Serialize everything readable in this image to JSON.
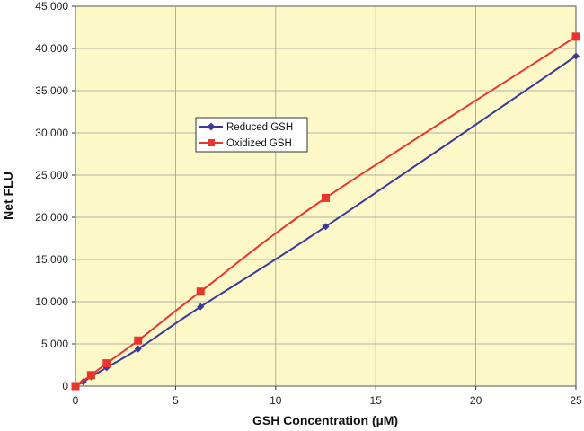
{
  "chart_data": {
    "type": "line",
    "title": "",
    "xlabel": "GSH Concentration (µM)",
    "ylabel": "Net FLU",
    "xlim": [
      0,
      25
    ],
    "ylim": [
      0,
      45000
    ],
    "x_ticks": [
      0,
      5,
      10,
      15,
      20,
      25
    ],
    "x_tick_labels": [
      "0",
      "5",
      "10",
      "15",
      "20",
      "25"
    ],
    "y_ticks": [
      0,
      5000,
      10000,
      15000,
      20000,
      25000,
      30000,
      35000,
      40000,
      45000
    ],
    "y_tick_labels": [
      "0",
      "5,000",
      "10,000",
      "15,000",
      "20,000",
      "25,000",
      "30,000",
      "35,000",
      "40,000",
      "45,000"
    ],
    "grid": true,
    "legend_position": "center-left",
    "plot_background": "#FDF8C8",
    "grid_color": "#9A9A9A",
    "series": [
      {
        "name": "Reduced GSH",
        "marker": "diamond",
        "color": "#3B3A9A",
        "x": [
          0,
          0.39,
          0.78,
          1.56,
          3.13,
          6.25,
          12.5,
          25
        ],
        "y": [
          0,
          500,
          1100,
          2200,
          4400,
          9400,
          18900,
          39100
        ]
      },
      {
        "name": "Oxidized GSH",
        "marker": "square",
        "color": "#E8362E",
        "x": [
          0,
          0.78,
          1.56,
          3.13,
          6.25,
          12.5,
          25
        ],
        "y": [
          0,
          1300,
          2700,
          5400,
          11200,
          22300,
          41400
        ]
      }
    ]
  }
}
